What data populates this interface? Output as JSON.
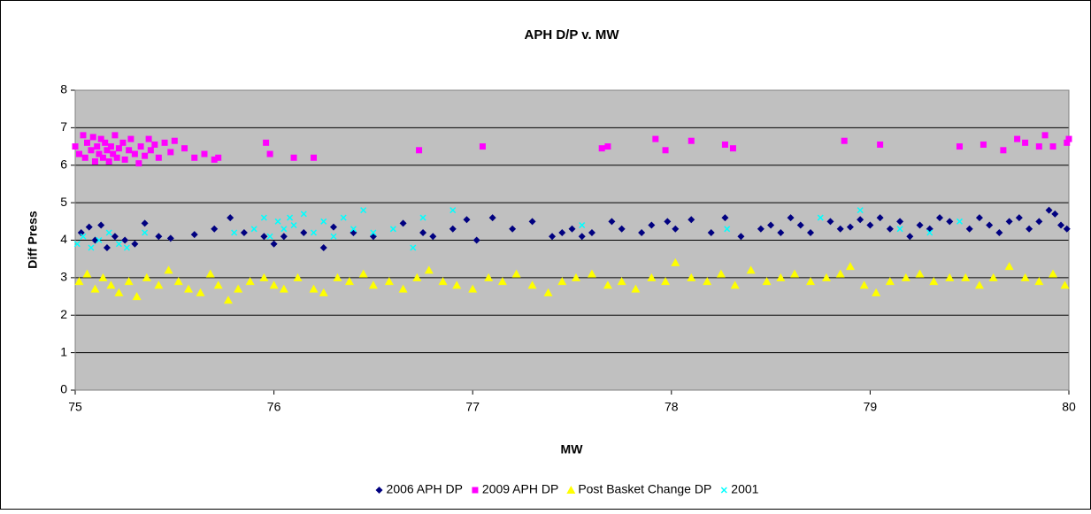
{
  "chart_data": {
    "type": "scatter",
    "title": "APH D/P v. MW",
    "x_label": "MW",
    "y_label": "Diff Press",
    "xlim": [
      75,
      80
    ],
    "xticks": [
      75,
      76,
      77,
      78,
      79,
      80
    ],
    "ylim": [
      0,
      8
    ],
    "yticks": [
      0,
      1,
      2,
      3,
      4,
      5,
      6,
      7,
      8
    ],
    "grid": true,
    "legend": "bottom",
    "plot_background": "#c0c0c0",
    "series": [
      {
        "name": "2006 APH DP",
        "color": "#000080",
        "marker": "diamond",
        "x": [
          75.03,
          75.07,
          75.1,
          75.13,
          75.16,
          75.2,
          75.25,
          75.3,
          75.35,
          75.42,
          75.48,
          75.6,
          75.7,
          75.78,
          75.85,
          75.95,
          76.0,
          76.05,
          76.15,
          76.25,
          76.3,
          76.4,
          76.5,
          76.65,
          76.75,
          76.8,
          76.9,
          76.97,
          77.02,
          77.1,
          77.2,
          77.3,
          77.4,
          77.45,
          77.5,
          77.55,
          77.6,
          77.7,
          77.75,
          77.85,
          77.9,
          77.98,
          78.02,
          78.1,
          78.2,
          78.27,
          78.35,
          78.45,
          78.5,
          78.55,
          78.6,
          78.65,
          78.7,
          78.8,
          78.85,
          78.9,
          78.95,
          79.0,
          79.05,
          79.1,
          79.15,
          79.2,
          79.25,
          79.3,
          79.35,
          79.4,
          79.5,
          79.55,
          79.6,
          79.65,
          79.7,
          79.75,
          79.8,
          79.85,
          79.9,
          79.93,
          79.96,
          79.99
        ],
        "values": [
          4.2,
          4.35,
          4.0,
          4.4,
          3.8,
          4.1,
          4.0,
          3.9,
          4.45,
          4.1,
          4.05,
          4.15,
          4.3,
          4.6,
          4.2,
          4.1,
          3.9,
          4.1,
          4.2,
          3.8,
          4.35,
          4.2,
          4.1,
          4.45,
          4.2,
          4.1,
          4.3,
          4.55,
          4.0,
          4.6,
          4.3,
          4.5,
          4.1,
          4.2,
          4.3,
          4.1,
          4.2,
          4.5,
          4.3,
          4.2,
          4.4,
          4.5,
          4.3,
          4.55,
          4.2,
          4.6,
          4.1,
          4.3,
          4.4,
          4.2,
          4.6,
          4.4,
          4.2,
          4.5,
          4.3,
          4.35,
          4.55,
          4.4,
          4.6,
          4.3,
          4.5,
          4.1,
          4.4,
          4.3,
          4.6,
          4.5,
          4.3,
          4.6,
          4.4,
          4.2,
          4.5,
          4.6,
          4.3,
          4.5,
          4.8,
          4.7,
          4.4,
          4.3
        ]
      },
      {
        "name": "2009 APH DP",
        "color": "#ff00ff",
        "marker": "square",
        "x": [
          75.0,
          75.02,
          75.04,
          75.05,
          75.06,
          75.08,
          75.09,
          75.1,
          75.11,
          75.12,
          75.13,
          75.14,
          75.15,
          75.16,
          75.17,
          75.18,
          75.19,
          75.2,
          75.21,
          75.22,
          75.24,
          75.25,
          75.27,
          75.28,
          75.3,
          75.32,
          75.33,
          75.35,
          75.37,
          75.38,
          75.4,
          75.42,
          75.45,
          75.48,
          75.5,
          75.55,
          75.6,
          75.65,
          75.7,
          75.72,
          75.96,
          75.98,
          76.1,
          76.2,
          76.73,
          77.05,
          77.65,
          77.68,
          77.92,
          77.97,
          78.1,
          78.27,
          78.31,
          78.87,
          79.05,
          79.45,
          79.57,
          79.67,
          79.74,
          79.78,
          79.85,
          79.88,
          79.92,
          79.99,
          80.0
        ],
        "values": [
          6.5,
          6.3,
          6.8,
          6.2,
          6.6,
          6.4,
          6.75,
          6.1,
          6.5,
          6.3,
          6.7,
          6.2,
          6.6,
          6.4,
          6.1,
          6.5,
          6.3,
          6.8,
          6.2,
          6.45,
          6.6,
          6.15,
          6.4,
          6.7,
          6.3,
          6.05,
          6.5,
          6.25,
          6.7,
          6.4,
          6.55,
          6.2,
          6.6,
          6.35,
          6.65,
          6.45,
          6.2,
          6.3,
          6.15,
          6.2,
          6.6,
          6.3,
          6.2,
          6.2,
          6.4,
          6.5,
          6.45,
          6.5,
          6.7,
          6.4,
          6.65,
          6.55,
          6.45,
          6.65,
          6.55,
          6.5,
          6.55,
          6.4,
          6.7,
          6.6,
          6.5,
          6.8,
          6.5,
          6.6,
          6.7
        ]
      },
      {
        "name": "Post Basket Change DP",
        "color": "#ffff00",
        "marker": "triangle",
        "x": [
          75.02,
          75.06,
          75.1,
          75.14,
          75.18,
          75.22,
          75.27,
          75.31,
          75.36,
          75.42,
          75.47,
          75.52,
          75.57,
          75.63,
          75.68,
          75.72,
          75.77,
          75.82,
          75.88,
          75.95,
          76.0,
          76.05,
          76.12,
          76.2,
          76.25,
          76.32,
          76.38,
          76.45,
          76.5,
          76.58,
          76.65,
          76.72,
          76.78,
          76.85,
          76.92,
          77.0,
          77.08,
          77.15,
          77.22,
          77.3,
          77.38,
          77.45,
          77.52,
          77.6,
          77.68,
          77.75,
          77.82,
          77.9,
          77.97,
          78.02,
          78.1,
          78.18,
          78.25,
          78.32,
          78.4,
          78.48,
          78.55,
          78.62,
          78.7,
          78.78,
          78.85,
          78.9,
          78.97,
          79.03,
          79.1,
          79.18,
          79.25,
          79.32,
          79.4,
          79.48,
          79.55,
          79.62,
          79.7,
          79.78,
          79.85,
          79.92,
          79.98
        ],
        "values": [
          2.9,
          3.1,
          2.7,
          3.0,
          2.8,
          2.6,
          2.9,
          2.5,
          3.0,
          2.8,
          3.2,
          2.9,
          2.7,
          2.6,
          3.1,
          2.8,
          2.4,
          2.7,
          2.9,
          3.0,
          2.8,
          2.7,
          3.0,
          2.7,
          2.6,
          3.0,
          2.9,
          3.1,
          2.8,
          2.9,
          2.7,
          3.0,
          3.2,
          2.9,
          2.8,
          2.7,
          3.0,
          2.9,
          3.1,
          2.8,
          2.6,
          2.9,
          3.0,
          3.1,
          2.8,
          2.9,
          2.7,
          3.0,
          2.9,
          3.4,
          3.0,
          2.9,
          3.1,
          2.8,
          3.2,
          2.9,
          3.0,
          3.1,
          2.9,
          3.0,
          3.1,
          3.3,
          2.8,
          2.6,
          2.9,
          3.0,
          3.1,
          2.9,
          3.0,
          3.0,
          2.8,
          3.0,
          3.3,
          3.0,
          2.9,
          3.1,
          2.8
        ]
      },
      {
        "name": "2001",
        "color": "#00ffff",
        "marker": "cross",
        "x": [
          75.01,
          75.04,
          75.08,
          75.12,
          75.17,
          75.22,
          75.26,
          75.35,
          75.8,
          75.9,
          75.95,
          75.98,
          76.02,
          76.05,
          76.08,
          76.1,
          76.15,
          76.2,
          76.25,
          76.3,
          76.35,
          76.4,
          76.45,
          76.5,
          76.6,
          76.7,
          76.75,
          76.9,
          77.55,
          78.28,
          78.75,
          78.95,
          79.15,
          79.3,
          79.45
        ],
        "values": [
          3.9,
          4.1,
          3.8,
          4.0,
          4.2,
          3.9,
          3.8,
          4.2,
          4.2,
          4.3,
          4.6,
          4.1,
          4.5,
          4.3,
          4.6,
          4.4,
          4.7,
          4.2,
          4.5,
          4.1,
          4.6,
          4.3,
          4.8,
          4.2,
          4.3,
          3.8,
          4.6,
          4.8,
          4.4,
          4.3,
          4.6,
          4.8,
          4.3,
          4.2,
          4.5
        ]
      }
    ]
  }
}
